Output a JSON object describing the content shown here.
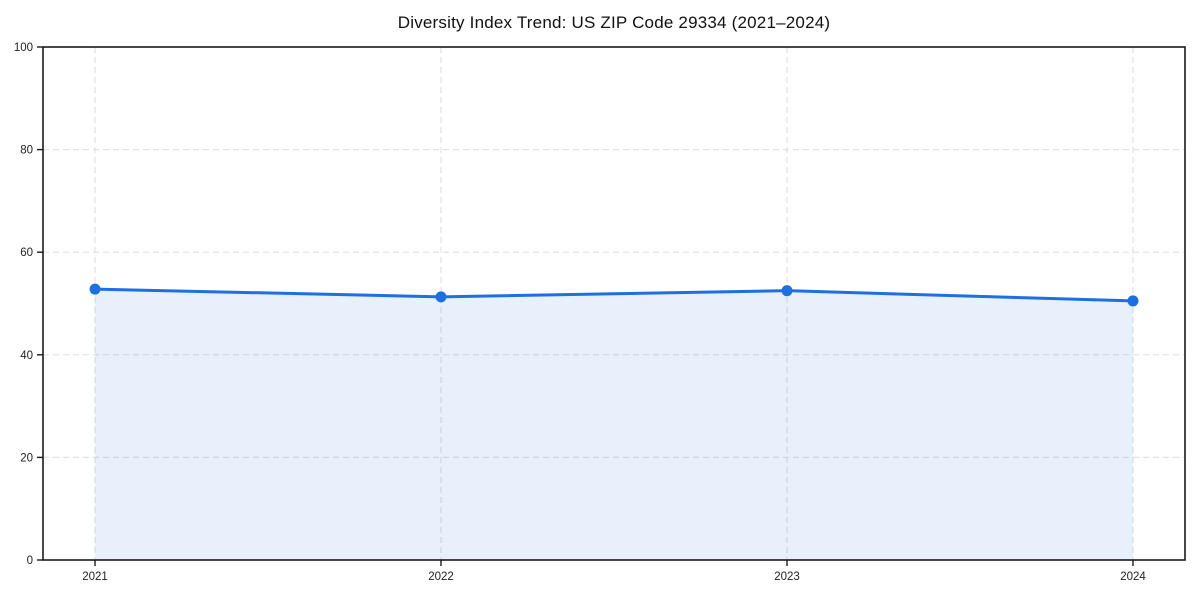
{
  "chart_data": {
    "type": "area",
    "title": "Diversity Index Trend: US ZIP Code 29334 (2021–2024)",
    "categories": [
      "2021",
      "2022",
      "2023",
      "2024"
    ],
    "series": [
      {
        "name": "Diversity Index",
        "values": [
          52.8,
          51.3,
          52.5,
          50.5
        ]
      }
    ],
    "xlabel": "",
    "ylabel": "",
    "ylim": [
      0,
      100
    ],
    "yticks": [
      0,
      20,
      40,
      60,
      80,
      100
    ],
    "grid": "dashed-both-axes",
    "legend": "none",
    "colors": {
      "line": "#1e6fe0",
      "marker": "#1e6fe0",
      "area_fill": "rgba(30,111,224,0.10)",
      "gridline": "#e1e1e1",
      "spine": "#1a1a1a",
      "tick_text": "#222222",
      "background": "#ffffff"
    },
    "style": {
      "line_width": 3,
      "marker_radius": 5.5,
      "marker_shape": "circle",
      "grid_dash": "6 4"
    }
  }
}
